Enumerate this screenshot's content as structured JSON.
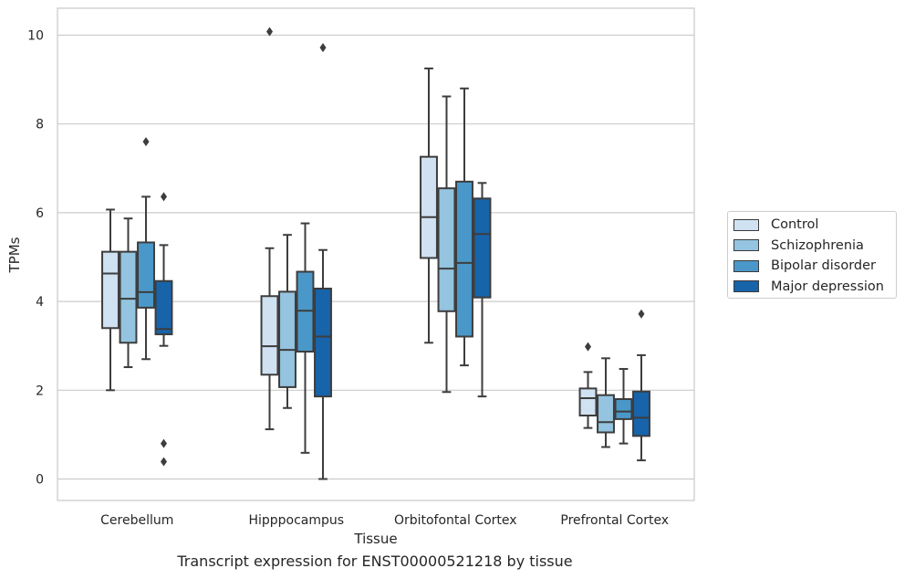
{
  "chart_data": {
    "type": "box",
    "title": "",
    "caption": "Transcript expression for ENST00000521218 by tissue",
    "xlabel": "Tissue",
    "ylabel": "TPMs",
    "ylim": [
      -0.5,
      10.6
    ],
    "yticks": [
      0,
      2,
      4,
      6,
      8,
      10
    ],
    "grid": "horizontal",
    "legend_position": "right",
    "categories": [
      "Cerebellum",
      "Hipppocampus",
      "Orbitofontal Cortex",
      "Prefrontal Cortex"
    ],
    "series": [
      {
        "name": "Control",
        "color": "#d0e1f2",
        "boxes": [
          {
            "whislo": 2.0,
            "q1": 3.4,
            "med": 4.63,
            "q3": 5.12,
            "whishi": 6.07,
            "fliers": []
          },
          {
            "whislo": 1.12,
            "q1": 2.35,
            "med": 2.99,
            "q3": 4.12,
            "whishi": 5.2,
            "fliers": [
              10.08
            ]
          },
          {
            "whislo": 3.07,
            "q1": 4.98,
            "med": 5.9,
            "q3": 7.26,
            "whishi": 9.25,
            "fliers": []
          },
          {
            "whislo": 1.15,
            "q1": 1.43,
            "med": 1.82,
            "q3": 2.04,
            "whishi": 2.41,
            "fliers": [
              2.98
            ]
          }
        ]
      },
      {
        "name": "Schizophrenia",
        "color": "#94c4df",
        "boxes": [
          {
            "whislo": 2.52,
            "q1": 3.07,
            "med": 4.06,
            "q3": 5.12,
            "whishi": 5.87,
            "fliers": []
          },
          {
            "whislo": 1.6,
            "q1": 2.07,
            "med": 2.91,
            "q3": 4.22,
            "whishi": 5.5,
            "fliers": []
          },
          {
            "whislo": 1.96,
            "q1": 3.78,
            "med": 4.74,
            "q3": 6.55,
            "whishi": 8.62,
            "fliers": []
          },
          {
            "whislo": 0.72,
            "q1": 1.05,
            "med": 1.28,
            "q3": 1.89,
            "whishi": 2.72,
            "fliers": []
          }
        ]
      },
      {
        "name": "Bipolar disorder",
        "color": "#4a98c9",
        "boxes": [
          {
            "whislo": 2.7,
            "q1": 3.86,
            "med": 4.21,
            "q3": 5.33,
            "whishi": 6.36,
            "fliers": [
              7.6
            ]
          },
          {
            "whislo": 0.59,
            "q1": 2.87,
            "med": 3.79,
            "q3": 4.67,
            "whishi": 5.76,
            "fliers": []
          },
          {
            "whislo": 2.56,
            "q1": 3.21,
            "med": 4.87,
            "q3": 6.7,
            "whishi": 8.8,
            "fliers": []
          },
          {
            "whislo": 0.8,
            "q1": 1.35,
            "med": 1.52,
            "q3": 1.8,
            "whishi": 2.48,
            "fliers": []
          }
        ]
      },
      {
        "name": "Major depression",
        "color": "#1764ab",
        "boxes": [
          {
            "whislo": 3.0,
            "q1": 3.26,
            "med": 3.38,
            "q3": 4.46,
            "whishi": 5.27,
            "fliers": [
              6.36,
              0.8,
              0.39
            ]
          },
          {
            "whislo": 0.0,
            "q1": 1.86,
            "med": 3.21,
            "q3": 4.29,
            "whishi": 5.16,
            "fliers": [
              9.72
            ]
          },
          {
            "whislo": 1.86,
            "q1": 4.09,
            "med": 5.52,
            "q3": 6.32,
            "whishi": 6.67,
            "fliers": []
          },
          {
            "whislo": 0.42,
            "q1": 0.97,
            "med": 1.38,
            "q3": 1.97,
            "whishi": 2.79,
            "fliers": [
              3.72
            ]
          }
        ]
      }
    ]
  }
}
